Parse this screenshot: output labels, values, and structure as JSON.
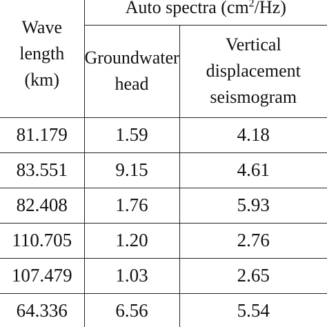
{
  "table": {
    "header": {
      "wave_length": [
        "Wave",
        "length",
        "(km)"
      ],
      "auto_spectra": {
        "prefix": "Auto spectra (cm",
        "sup": "2",
        "suffix": "/Hz)"
      },
      "groundwater": [
        "Groundwater",
        "head"
      ],
      "vertical": [
        "Vertical",
        "displacement",
        "seismogram"
      ]
    },
    "rows": [
      {
        "wave_length": "81.179",
        "groundwater_head": "1.59",
        "vertical_displacement": "4.18"
      },
      {
        "wave_length": "83.551",
        "groundwater_head": "9.15",
        "vertical_displacement": "4.61"
      },
      {
        "wave_length": "82.408",
        "groundwater_head": "1.76",
        "vertical_displacement": "5.93"
      },
      {
        "wave_length": "110.705",
        "groundwater_head": "1.20",
        "vertical_displacement": "2.76"
      },
      {
        "wave_length": "107.479",
        "groundwater_head": "1.03",
        "vertical_displacement": "2.65"
      },
      {
        "wave_length": "64.336",
        "groundwater_head": "6.56",
        "vertical_displacement": "5.54"
      }
    ]
  }
}
